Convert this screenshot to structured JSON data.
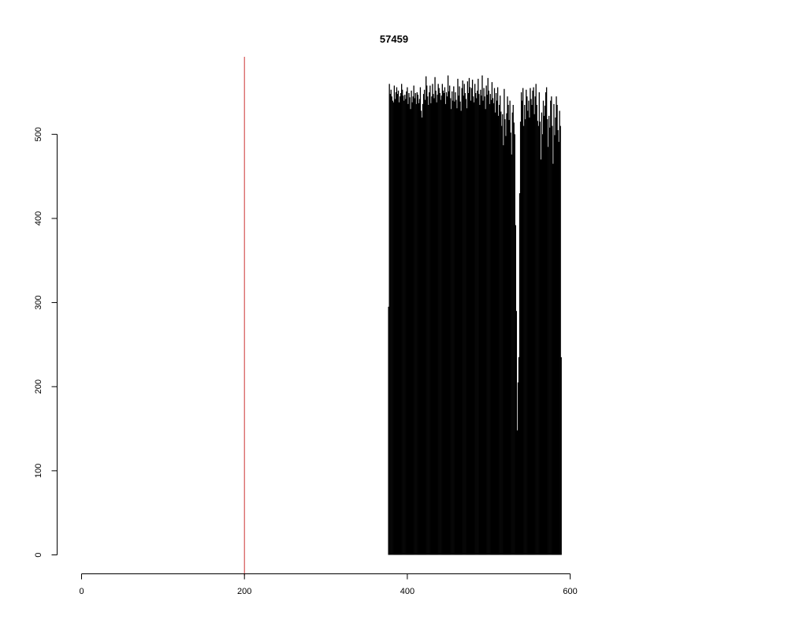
{
  "chart_data": {
    "type": "bar",
    "title": "57459",
    "xlabel": "",
    "ylabel": "",
    "xlim": [
      0,
      767
    ],
    "ylim": [
      0,
      590
    ],
    "x_ticks": [
      0,
      200,
      400,
      600
    ],
    "x_tick_labels": [
      "0",
      "200",
      "400",
      "600"
    ],
    "y_ticks": [
      0,
      100,
      200,
      300,
      400,
      500
    ],
    "y_tick_labels": [
      "0",
      "100",
      "200",
      "300",
      "400",
      "500"
    ],
    "grid": false,
    "bar_color": "#000000",
    "reference_line": {
      "x": 200,
      "color": "#cc3333"
    },
    "series": [
      {
        "x_start": 1,
        "values": [
          0,
          0,
          0,
          0,
          0,
          0,
          0,
          0,
          0,
          0,
          0,
          0,
          0,
          0,
          0,
          0,
          0,
          0,
          0,
          0,
          0,
          0,
          0,
          0,
          0,
          0,
          0,
          0,
          0,
          0,
          0,
          0,
          0,
          0,
          0,
          0,
          0,
          0,
          0,
          0,
          0,
          0,
          0,
          0,
          0,
          0,
          0,
          0,
          0,
          0,
          0,
          0,
          0,
          0,
          0,
          0,
          0,
          0,
          0,
          0,
          0,
          0,
          0,
          0,
          0,
          0,
          0,
          0,
          0,
          0,
          0,
          0,
          0,
          0,
          0,
          0,
          0,
          0,
          0,
          0,
          0,
          0,
          0,
          0,
          0,
          0,
          0,
          0,
          0,
          0,
          0,
          0,
          0,
          0,
          0,
          0,
          0,
          0,
          0,
          0,
          0,
          0,
          0,
          0,
          0,
          0,
          0,
          0,
          0,
          0,
          0,
          0,
          0,
          0,
          0,
          0,
          0,
          0,
          0,
          0,
          0,
          0,
          0,
          0,
          0,
          0,
          0,
          0,
          0,
          0,
          0,
          0,
          0,
          0,
          0,
          0,
          0,
          0,
          0,
          0,
          0,
          0,
          0,
          0,
          0,
          0,
          0,
          0,
          0,
          0,
          0,
          0,
          0,
          0,
          0,
          0,
          0,
          0,
          0,
          0,
          0,
          0,
          0,
          0,
          0,
          0,
          0,
          0,
          0,
          0,
          0,
          0,
          0,
          0,
          0,
          0,
          0,
          0,
          0,
          0,
          0,
          0,
          0,
          0,
          0,
          0,
          0,
          0,
          0,
          0,
          0,
          0,
          0,
          0,
          0,
          0,
          0,
          0,
          0,
          0,
          0,
          0,
          0,
          0,
          0,
          0,
          0,
          0,
          0,
          0,
          0,
          0,
          0,
          0,
          0,
          0,
          0,
          0,
          0,
          0,
          0,
          0,
          0,
          0,
          0,
          0,
          0,
          0,
          0,
          0,
          0,
          0,
          0,
          0,
          0,
          0,
          0,
          0,
          0,
          0,
          0,
          0,
          0,
          0,
          0,
          0,
          0,
          0,
          0,
          0,
          0,
          0,
          0,
          0,
          0,
          0,
          0,
          0,
          0,
          0,
          0,
          0,
          0,
          0,
          0,
          0,
          0,
          0,
          0,
          0,
          0,
          0,
          0,
          0,
          0,
          0,
          0,
          0,
          0,
          0,
          0,
          0,
          0,
          0,
          0,
          0,
          0,
          0,
          0,
          0,
          0,
          0,
          0,
          0,
          0,
          0,
          0,
          0,
          0,
          0,
          0,
          0,
          0,
          0,
          0,
          0,
          0,
          0,
          0,
          0,
          0,
          0,
          0,
          0,
          0,
          0,
          0,
          0,
          0,
          0,
          0,
          0,
          0,
          0,
          0,
          0,
          0,
          0,
          0,
          0,
          0,
          0,
          0,
          0,
          0,
          0,
          0,
          0,
          0,
          0,
          0,
          0,
          0,
          0,
          0,
          0,
          0,
          0,
          0,
          0,
          0,
          0,
          0,
          0,
          0,
          0,
          0,
          0,
          0,
          0,
          0,
          0,
          0,
          0,
          0,
          0,
          0,
          0,
          0,
          0,
          0,
          0,
          0,
          0,
          0,
          0,
          295,
          560,
          548,
          553,
          545,
          540,
          538,
          558,
          542,
          550,
          556,
          548,
          552,
          538,
          545,
          549,
          560,
          553,
          546,
          540,
          547,
          542,
          551,
          556,
          536,
          549,
          544,
          530,
          552,
          538,
          545,
          558,
          543,
          549,
          536,
          550,
          547,
          537,
          542,
          556,
          528,
          520,
          536,
          548,
          553,
          541,
          569,
          558,
          545,
          535,
          550,
          558,
          537,
          545,
          560,
          548,
          543,
          568,
          552,
          538,
          547,
          560,
          555,
          549,
          541,
          546,
          560,
          552,
          549,
          556,
          536,
          550,
          545,
          570,
          551,
          558,
          543,
          530,
          551,
          540,
          557,
          539,
          550,
          541,
          531,
          566,
          546,
          557,
          539,
          528,
          555,
          564,
          546,
          560,
          549,
          542,
          531,
          563,
          549,
          567,
          556,
          540,
          555,
          565,
          545,
          538,
          560,
          549,
          543,
          552,
          566,
          548,
          535,
          553,
          546,
          570,
          540,
          555,
          545,
          530,
          558,
          547,
          567,
          552,
          536,
          548,
          541,
          562,
          543,
          537,
          555,
          526,
          549,
          540,
          556,
          522,
          535,
          546,
          527,
          510,
          524,
          487,
          554,
          518,
          498,
          525,
          545,
          535,
          517,
          540,
          502,
          476,
          526,
          535,
          514,
          500,
          392,
          290,
          148,
          205,
          235,
          430,
          515,
          550,
          540,
          555,
          510,
          535,
          518,
          553,
          545,
          528,
          540,
          520,
          555,
          542,
          535,
          552,
          556,
          524,
          545,
          560,
          535,
          516,
          510,
          550,
          515,
          470,
          526,
          500,
          540,
          522,
          534,
          550,
          556,
          518,
          485,
          522,
          508,
          540,
          545,
          510,
          465,
          536,
          499,
          520,
          545,
          535,
          505,
          491,
          528,
          510,
          235,
          0,
          0,
          0,
          0,
          0,
          0,
          0,
          0,
          0,
          0,
          0,
          0,
          0,
          0,
          0,
          0,
          0,
          0,
          0,
          0,
          0,
          0,
          0,
          0,
          0,
          0,
          0,
          0,
          0,
          0,
          0,
          0,
          0,
          0,
          0,
          0,
          0,
          0,
          0,
          0,
          0,
          0,
          0,
          0,
          0,
          0,
          0,
          0,
          0,
          0,
          0,
          0,
          0,
          0,
          0,
          0,
          0,
          0,
          0,
          0,
          0,
          0,
          0,
          0,
          0,
          0,
          0,
          0,
          0,
          0,
          0,
          0,
          0,
          0,
          0,
          0,
          0,
          0,
          0,
          0,
          0,
          0,
          0,
          0
        ]
      }
    ]
  }
}
